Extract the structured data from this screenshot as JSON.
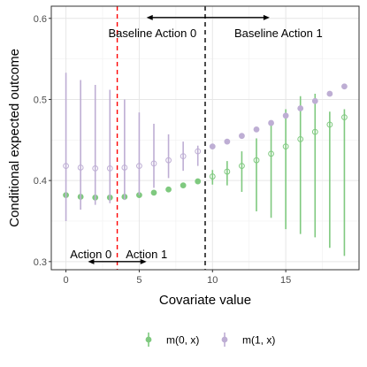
{
  "chart_data": {
    "type": "scatter",
    "xlabel": "Covariate value",
    "ylabel": "Conditional expected outcome",
    "xlim": [
      -1,
      20
    ],
    "ylim": [
      0.29,
      0.615
    ],
    "xticks": [
      0,
      5,
      10,
      15
    ],
    "yticks": [
      0.3,
      0.4,
      0.5,
      0.6
    ],
    "xtick_labels": [
      "0",
      "5",
      "10",
      "15"
    ],
    "ytick_labels": [
      "0.3",
      "0.4",
      "0.5",
      "0.6"
    ],
    "grid": true,
    "legend_position": "bottom",
    "series": [
      {
        "name": "m(0, x)",
        "color": "#7fc97f",
        "x": [
          0,
          1,
          2,
          3,
          4,
          5,
          6,
          7,
          8,
          9,
          10,
          11,
          12,
          13,
          14,
          15,
          16,
          17,
          18,
          19
        ],
        "y": [
          0.382,
          0.38,
          0.379,
          0.379,
          0.38,
          0.382,
          0.385,
          0.389,
          0.394,
          0.399,
          0.405,
          0.411,
          0.418,
          0.425,
          0.433,
          0.442,
          0.451,
          0.46,
          0.469,
          0.478
        ],
        "low": [
          0.382,
          0.38,
          0.379,
          0.379,
          0.38,
          0.382,
          0.385,
          0.389,
          0.394,
          0.399,
          0.395,
          0.394,
          0.386,
          0.362,
          0.354,
          0.34,
          0.334,
          0.33,
          0.317,
          0.307
        ],
        "high": [
          0.382,
          0.38,
          0.379,
          0.379,
          0.38,
          0.382,
          0.385,
          0.389,
          0.394,
          0.399,
          0.413,
          0.424,
          0.436,
          0.452,
          0.472,
          0.488,
          0.504,
          0.507,
          0.485,
          0.488
        ],
        "filled": [
          true,
          true,
          true,
          true,
          true,
          true,
          true,
          true,
          true,
          true,
          false,
          false,
          false,
          false,
          false,
          false,
          false,
          false,
          false,
          false
        ]
      },
      {
        "name": "m(1, x)",
        "color": "#beaed4",
        "x": [
          0,
          1,
          2,
          3,
          4,
          5,
          6,
          7,
          8,
          9,
          10,
          11,
          12,
          13,
          14,
          15,
          16,
          17,
          18,
          19
        ],
        "y": [
          0.418,
          0.416,
          0.415,
          0.415,
          0.416,
          0.418,
          0.421,
          0.425,
          0.43,
          0.436,
          0.442,
          0.448,
          0.455,
          0.463,
          0.471,
          0.48,
          0.489,
          0.498,
          0.507,
          0.516
        ],
        "low": [
          0.35,
          0.364,
          0.37,
          0.372,
          0.376,
          0.382,
          0.391,
          0.403,
          0.412,
          0.418,
          0.442,
          0.448,
          0.455,
          0.463,
          0.471,
          0.48,
          0.489,
          0.498,
          0.507,
          0.516
        ],
        "high": [
          0.533,
          0.524,
          0.518,
          0.512,
          0.5,
          0.484,
          0.47,
          0.457,
          0.448,
          0.443,
          0.442,
          0.448,
          0.455,
          0.463,
          0.471,
          0.48,
          0.489,
          0.498,
          0.507,
          0.516
        ],
        "filled": [
          false,
          false,
          false,
          false,
          false,
          false,
          false,
          false,
          false,
          false,
          true,
          true,
          true,
          true,
          true,
          true,
          true,
          true,
          true,
          true
        ]
      }
    ],
    "vlines": [
      {
        "x": 3.5,
        "color": "#ff0000",
        "style": "dashed"
      },
      {
        "x": 9.5,
        "color": "#000000",
        "style": "dashed"
      }
    ],
    "annotations": [
      {
        "text": "Action 0",
        "x": 1.7,
        "y": 0.309
      },
      {
        "text": "Action 1",
        "x": 5.5,
        "y": 0.309
      },
      {
        "text": "Baseline Action 0",
        "x": 5.9,
        "y": 0.582
      },
      {
        "text": "Baseline Action 1",
        "x": 14.5,
        "y": 0.582
      }
    ],
    "arrows": [
      {
        "x1": 1.5,
        "x2": 5.5,
        "y": 0.3
      },
      {
        "x1": 5.5,
        "x2": 13.9,
        "y": 0.601
      }
    ]
  }
}
